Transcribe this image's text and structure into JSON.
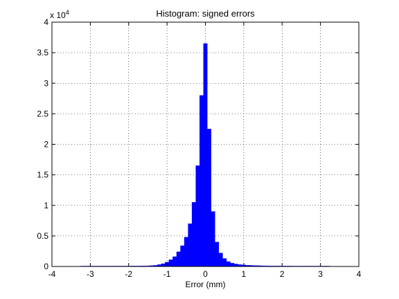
{
  "chart_data": {
    "type": "bar",
    "title": "Histogram: signed errors",
    "xlabel": "Error (mm)",
    "ylabel": "",
    "xlim": [
      -4,
      4
    ],
    "ylim": [
      0,
      40000
    ],
    "x_ticks": [
      -4,
      -3,
      -2,
      -1,
      0,
      1,
      2,
      3,
      4
    ],
    "y_ticks": [
      0,
      5000,
      10000,
      15000,
      20000,
      25000,
      30000,
      35000,
      40000
    ],
    "x_tick_labels": [
      "-4",
      "-3",
      "-2",
      "-1",
      "0",
      "1",
      "2",
      "3",
      "4"
    ],
    "y_tick_labels": [
      "0",
      "0.5",
      "1",
      "1.5",
      "2",
      "2.5",
      "3",
      "3.5",
      "4"
    ],
    "y_multiplier_base": "x 10",
    "y_multiplier_exponent": "4",
    "grid": true,
    "bar_color": "#0000ff",
    "bin_width": 0.1,
    "x": [
      -3.2,
      -3.1,
      -3.0,
      -2.9,
      -2.8,
      -2.7,
      -2.6,
      -2.5,
      -2.4,
      -2.3,
      -2.2,
      -2.1,
      -2.0,
      -1.9,
      -1.8,
      -1.7,
      -1.6,
      -1.5,
      -1.4,
      -1.3,
      -1.2,
      -1.1,
      -1.0,
      -0.9,
      -0.8,
      -0.7,
      -0.6,
      -0.5,
      -0.4,
      -0.3,
      -0.2,
      -0.1,
      0.0,
      0.1,
      0.2,
      0.3,
      0.4,
      0.5,
      0.6,
      0.7,
      0.8,
      0.9,
      1.0,
      1.1,
      1.2,
      1.3,
      1.4,
      1.5,
      1.6,
      1.7,
      1.8,
      1.9,
      2.0,
      2.1,
      2.2,
      2.3,
      2.4,
      2.5,
      2.6,
      2.7,
      2.8,
      2.9,
      3.0,
      3.1,
      3.2
    ],
    "values": [
      60,
      60,
      60,
      60,
      60,
      60,
      60,
      60,
      60,
      60,
      60,
      60,
      60,
      70,
      70,
      80,
      90,
      100,
      130,
      180,
      300,
      450,
      700,
      1100,
      1600,
      2400,
      3400,
      4800,
      7000,
      10500,
      16500,
      28000,
      36500,
      22500,
      9000,
      4000,
      2200,
      1300,
      800,
      550,
      400,
      300,
      250,
      200,
      170,
      150,
      130,
      110,
      100,
      90,
      80,
      80,
      70,
      70,
      70,
      60,
      60,
      60,
      60,
      60,
      60,
      60,
      60,
      60,
      60
    ]
  }
}
